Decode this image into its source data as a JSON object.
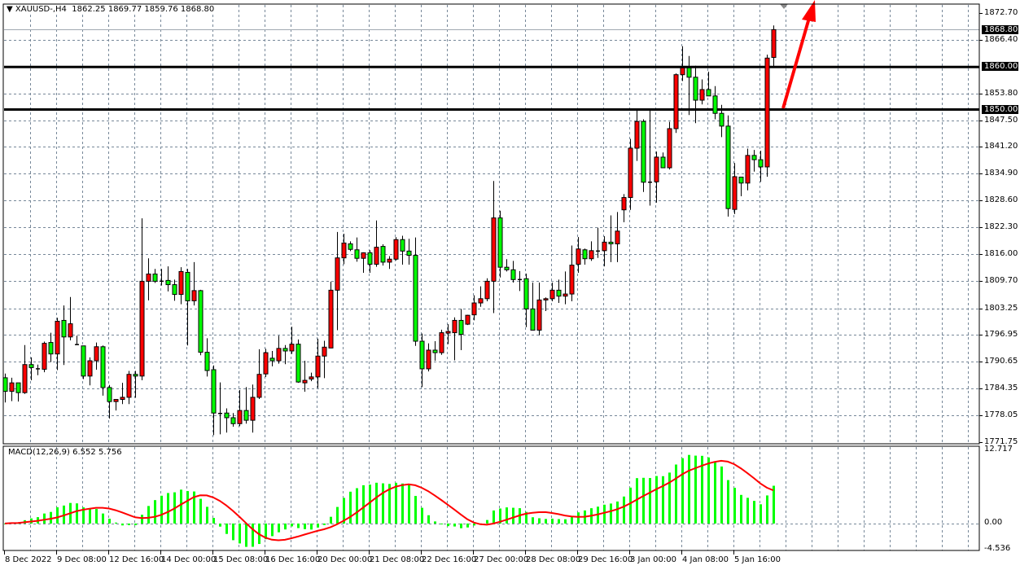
{
  "header": {
    "symbol": "XAUUSD-,H4",
    "open": "1862.25",
    "high": "1869.77",
    "low": "1859.76",
    "close": "1868.80"
  },
  "colors": {
    "bull": "#ff0000",
    "bear": "#00ff00",
    "grid": "#778899",
    "macd_hist": "#00ff00",
    "signal": "#ff0000",
    "level_line": "#000000",
    "arrow": "#ff0000"
  },
  "chart_data": {
    "type": "candlestick",
    "timeframe": "H4",
    "ohlc_order": [
      "open",
      "high",
      "low",
      "close"
    ],
    "candles": [
      [
        1786.9,
        1787.9,
        1781.1,
        1783.7
      ],
      [
        1783.7,
        1786.9,
        1781.4,
        1785.7
      ],
      [
        1785.7,
        1785.7,
        1781.3,
        1783.4
      ],
      [
        1783.4,
        1794.6,
        1783.1,
        1790.0
      ],
      [
        1790.0,
        1791.7,
        1786.3,
        1789.3
      ],
      [
        1789.1,
        1790.0,
        1787.5,
        1789.1
      ],
      [
        1788.9,
        1795.4,
        1788.2,
        1795.0
      ],
      [
        1795.2,
        1797.5,
        1790.6,
        1792.5
      ],
      [
        1792.5,
        1801.0,
        1788.7,
        1800.2
      ],
      [
        1800.4,
        1803.9,
        1789.9,
        1796.5
      ],
      [
        1796.5,
        1805.9,
        1795.7,
        1799.6
      ],
      [
        1794.8,
        1796.8,
        1794.6,
        1794.8
      ],
      [
        1794.4,
        1794.4,
        1786.6,
        1787.3
      ],
      [
        1787.3,
        1791.7,
        1785.1,
        1790.9
      ],
      [
        1790.9,
        1795.2,
        1788.8,
        1794.2
      ],
      [
        1794.2,
        1794.5,
        1782.7,
        1784.6
      ],
      [
        1784.6,
        1785.2,
        1777.3,
        1781.3
      ],
      [
        1781.3,
        1781.9,
        1779.2,
        1781.8
      ],
      [
        1781.8,
        1785.7,
        1780.7,
        1782.3
      ],
      [
        1782.3,
        1788.5,
        1780.7,
        1787.7
      ],
      [
        1787.7,
        1788.5,
        1782.2,
        1787.3
      ],
      [
        1787.3,
        1824.4,
        1786.3,
        1809.6
      ],
      [
        1809.6,
        1815.0,
        1805.1,
        1811.3
      ],
      [
        1811.3,
        1812.5,
        1809.2,
        1809.6
      ],
      [
        1809.7,
        1812.5,
        1808.6,
        1809.7
      ],
      [
        1809.8,
        1813.1,
        1807.2,
        1808.8
      ],
      [
        1808.8,
        1810.0,
        1805.0,
        1806.5
      ],
      [
        1806.5,
        1812.9,
        1804.2,
        1811.9
      ],
      [
        1811.7,
        1812.5,
        1794.5,
        1805.0
      ],
      [
        1805.0,
        1814.1,
        1803.9,
        1807.4
      ],
      [
        1807.4,
        1807.6,
        1792.2,
        1792.9
      ],
      [
        1792.9,
        1796.2,
        1787.2,
        1788.6
      ],
      [
        1788.8,
        1789.8,
        1773.4,
        1778.6
      ],
      [
        1778.6,
        1785.8,
        1773.6,
        1778.6
      ],
      [
        1778.6,
        1779.7,
        1774.0,
        1777.5
      ],
      [
        1777.5,
        1778.6,
        1775.4,
        1776.1
      ],
      [
        1776.1,
        1784.0,
        1775.5,
        1779.2
      ],
      [
        1779.2,
        1784.7,
        1776.1,
        1776.9
      ],
      [
        1776.9,
        1785.3,
        1774.0,
        1782.3
      ],
      [
        1782.3,
        1793.6,
        1781.9,
        1787.7
      ],
      [
        1787.8,
        1793.7,
        1787.1,
        1792.8
      ],
      [
        1791.5,
        1793.2,
        1789.6,
        1790.9
      ],
      [
        1790.9,
        1796.8,
        1790.2,
        1793.8
      ],
      [
        1793.8,
        1794.6,
        1790.1,
        1793.2
      ],
      [
        1793.2,
        1798.9,
        1792.5,
        1794.8
      ],
      [
        1794.8,
        1795.9,
        1785.7,
        1785.9
      ],
      [
        1785.7,
        1790.9,
        1783.6,
        1786.3
      ],
      [
        1786.6,
        1788.1,
        1786.1,
        1787.1
      ],
      [
        1787.1,
        1796.1,
        1784.5,
        1792.0
      ],
      [
        1792.0,
        1795.6,
        1786.8,
        1794.1
      ],
      [
        1793.9,
        1809.5,
        1793.9,
        1807.5
      ],
      [
        1807.5,
        1821.2,
        1798.1,
        1815.1
      ],
      [
        1815.1,
        1820.8,
        1813.6,
        1818.6
      ],
      [
        1818.4,
        1819.0,
        1816.7,
        1817.1
      ],
      [
        1817.0,
        1819.9,
        1814.2,
        1815.0
      ],
      [
        1815.0,
        1816.4,
        1811.6,
        1816.3
      ],
      [
        1816.3,
        1816.9,
        1811.6,
        1813.6
      ],
      [
        1813.6,
        1823.9,
        1813.0,
        1817.6
      ],
      [
        1817.8,
        1818.3,
        1813.3,
        1814.1
      ],
      [
        1814.1,
        1815.5,
        1812.5,
        1814.8
      ],
      [
        1814.8,
        1820.0,
        1814.5,
        1819.4
      ],
      [
        1819.4,
        1820.3,
        1813.5,
        1816.7
      ],
      [
        1816.7,
        1819.6,
        1813.5,
        1815.7
      ],
      [
        1815.7,
        1819.9,
        1794.4,
        1795.5
      ],
      [
        1795.5,
        1797.3,
        1784.7,
        1789.0
      ],
      [
        1789.0,
        1795.0,
        1788.4,
        1793.4
      ],
      [
        1793.4,
        1795.5,
        1790.9,
        1792.8
      ],
      [
        1792.8,
        1798.2,
        1792.3,
        1797.5
      ],
      [
        1797.4,
        1799.5,
        1794.8,
        1797.8
      ],
      [
        1797.5,
        1801.1,
        1791.0,
        1800.4
      ],
      [
        1800.4,
        1803.1,
        1793.4,
        1797.1
      ],
      [
        1799.5,
        1801.7,
        1799.3,
        1801.6
      ],
      [
        1801.7,
        1806.3,
        1800.4,
        1804.5
      ],
      [
        1804.5,
        1808.4,
        1803.6,
        1805.5
      ],
      [
        1805.5,
        1810.3,
        1804.9,
        1809.6
      ],
      [
        1809.6,
        1833.2,
        1802.1,
        1824.5
      ],
      [
        1824.5,
        1826.2,
        1810.5,
        1812.9
      ],
      [
        1812.9,
        1814.8,
        1811.9,
        1812.3
      ],
      [
        1812.3,
        1814.4,
        1809.3,
        1810.0
      ],
      [
        1810.1,
        1812.0,
        1807.3,
        1810.1
      ],
      [
        1810.2,
        1811.4,
        1798.8,
        1803.1
      ],
      [
        1803.1,
        1809.3,
        1798.1,
        1798.1
      ],
      [
        1798.1,
        1809.3,
        1796.9,
        1805.2
      ],
      [
        1805.2,
        1805.8,
        1802.6,
        1805.5
      ],
      [
        1805.5,
        1809.3,
        1804.9,
        1807.5
      ],
      [
        1807.5,
        1810.0,
        1804.5,
        1806.1
      ],
      [
        1806.1,
        1811.9,
        1804.2,
        1806.6
      ],
      [
        1806.6,
        1818.0,
        1804.9,
        1813.4
      ],
      [
        1813.6,
        1820.0,
        1811.6,
        1817.2
      ],
      [
        1817.0,
        1817.3,
        1813.5,
        1814.9
      ],
      [
        1814.9,
        1819.0,
        1814.4,
        1816.8
      ],
      [
        1816.8,
        1822.2,
        1815.1,
        1816.8
      ],
      [
        1816.8,
        1820.2,
        1813.1,
        1818.8
      ],
      [
        1818.8,
        1825.1,
        1814.1,
        1818.4
      ],
      [
        1818.4,
        1825.9,
        1814.1,
        1821.4
      ],
      [
        1826.4,
        1830.1,
        1823.5,
        1829.3
      ],
      [
        1829.3,
        1843.1,
        1826.4,
        1840.9
      ],
      [
        1840.9,
        1849.8,
        1837.9,
        1847.2
      ],
      [
        1847.2,
        1847.7,
        1830.6,
        1832.9
      ],
      [
        1833.0,
        1849.8,
        1827.4,
        1833.0
      ],
      [
        1833.0,
        1840.1,
        1828.1,
        1838.8
      ],
      [
        1838.8,
        1839.9,
        1836.3,
        1836.3
      ],
      [
        1836.3,
        1847.1,
        1835.9,
        1845.5
      ],
      [
        1845.5,
        1858.5,
        1844.5,
        1858.2
      ],
      [
        1858.2,
        1864.9,
        1856.7,
        1859.8
      ],
      [
        1859.8,
        1862.6,
        1848.7,
        1857.6
      ],
      [
        1857.6,
        1860.3,
        1846.8,
        1852.2
      ],
      [
        1852.2,
        1857.1,
        1851.2,
        1854.7
      ],
      [
        1854.7,
        1858.9,
        1853.2,
        1853.2
      ],
      [
        1853.2,
        1855.5,
        1847.7,
        1849.1
      ],
      [
        1849.1,
        1851.1,
        1843.5,
        1846.1
      ],
      [
        1846.1,
        1848.6,
        1824.8,
        1826.7
      ],
      [
        1826.5,
        1837.4,
        1825.4,
        1834.2
      ],
      [
        1834.1,
        1834.1,
        1829.6,
        1832.7
      ],
      [
        1832.7,
        1840.8,
        1831.0,
        1839.2
      ],
      [
        1839.2,
        1840.5,
        1835.4,
        1838.2
      ],
      [
        1838.2,
        1840.3,
        1833.0,
        1836.5
      ],
      [
        1836.5,
        1862.9,
        1834.2,
        1862.1
      ],
      [
        1862.25,
        1869.77,
        1859.76,
        1868.8
      ]
    ],
    "ylim": [
      1771.75,
      1872.7
    ],
    "price_ticks": [
      "1872.70",
      "1866.40",
      "1853.80",
      "1847.50",
      "1841.20",
      "1834.90",
      "1828.60",
      "1822.30",
      "1816.00",
      "1809.70",
      "1803.25",
      "1796.95",
      "1790.65",
      "1784.35",
      "1778.05",
      "1771.75"
    ],
    "horizontal_levels": [
      {
        "price": 1860.0,
        "label": "1860.00"
      },
      {
        "price": 1850.0,
        "label": "1850.00"
      }
    ],
    "current_price": {
      "price": 1868.8,
      "label": "1868.80"
    },
    "time_ticks": [
      {
        "bar": 0,
        "label": "8 Dec 2022"
      },
      {
        "bar": 8,
        "label": "9 Dec 08:00"
      },
      {
        "bar": 16,
        "label": "12 Dec 16:00"
      },
      {
        "bar": 24,
        "label": "14 Dec 00:00"
      },
      {
        "bar": 32,
        "label": "15 Dec 08:00"
      },
      {
        "bar": 40,
        "label": "16 Dec 16:00"
      },
      {
        "bar": 48,
        "label": "20 Dec 00:00"
      },
      {
        "bar": 56,
        "label": "21 Dec 08:00"
      },
      {
        "bar": 64,
        "label": "22 Dec 16:00"
      },
      {
        "bar": 72,
        "label": "27 Dec 00:00"
      },
      {
        "bar": 80,
        "label": "28 Dec 08:00"
      },
      {
        "bar": 88,
        "label": "29 Dec 16:00"
      },
      {
        "bar": 96,
        "label": "3 Jan 00:00"
      },
      {
        "bar": 104,
        "label": "4 Jan 08:00"
      },
      {
        "bar": 112,
        "label": "5 Jan 16:00"
      }
    ],
    "grid": true,
    "annotation": "red arrow pointing up from the 1850 level",
    "macd": {
      "label": "MACD(12,26,9)",
      "main_value": "6.552",
      "signal_value": "5.756",
      "fast": 12,
      "slow": 26,
      "signal": 9,
      "ylim": [
        -4.536,
        12.717
      ],
      "ticks": [
        "12.717",
        "0.00",
        "-4.536"
      ]
    }
  }
}
